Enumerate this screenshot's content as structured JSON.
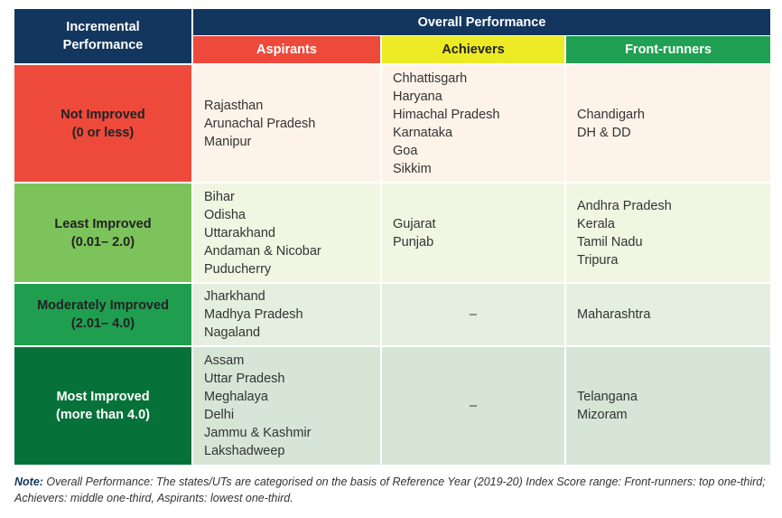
{
  "header": {
    "incremental_label_line1": "Incremental",
    "incremental_label_line2": "Performance",
    "overall_label": "Overall Performance",
    "columns": [
      "Aspirants",
      "Achievers",
      "Front-runners"
    ]
  },
  "colors": {
    "navy": "#12365e",
    "aspirants": "#ee4a3b",
    "achievers": "#ecea25",
    "front_runners": "#1fa052",
    "not_improved": "#ee4a3b",
    "least_improved": "#7dc35b",
    "moderately_improved": "#1f9e50",
    "most_improved": "#07713a"
  },
  "rows": [
    {
      "label": "Not Improved",
      "range": "(0 or less)",
      "aspirants": [
        "Rajasthan",
        "Arunachal Pradesh",
        "Manipur"
      ],
      "achievers": [
        "Chhattisgarh",
        "Haryana",
        "Himachal Pradesh",
        "Karnataka",
        "Goa",
        "Sikkim"
      ],
      "front_runners": [
        "Chandigarh",
        "DH & DD"
      ]
    },
    {
      "label": "Least Improved",
      "range": "(0.01– 2.0)",
      "aspirants": [
        "Bihar",
        "Odisha",
        "Uttarakhand",
        "Andaman & Nicobar",
        "Puducherry"
      ],
      "achievers": [
        "Gujarat",
        "Punjab"
      ],
      "front_runners": [
        "Andhra Pradesh",
        "Kerala",
        "Tamil Nadu",
        "Tripura"
      ]
    },
    {
      "label": "Moderately Improved",
      "range": "(2.01– 4.0)",
      "aspirants": [
        "Jharkhand",
        "Madhya Pradesh",
        "Nagaland"
      ],
      "achievers": [
        "–"
      ],
      "front_runners": [
        "Maharashtra"
      ]
    },
    {
      "label": "Most Improved",
      "range": "(more than 4.0)",
      "aspirants": [
        "Assam",
        "Uttar Pradesh",
        "Meghalaya",
        "Delhi",
        "Jammu & Kashmir",
        "Lakshadweep"
      ],
      "achievers": [
        "–"
      ],
      "front_runners": [
        "Telangana",
        "Mizoram"
      ]
    }
  ],
  "note": {
    "label": "Note:",
    "text": " Overall Performance: The states/UTs are categorised on the basis of Reference Year (2019-20) Index Score range: Front-runners: top one-third; Achievers: middle one-third, Aspirants: lowest one-third."
  }
}
